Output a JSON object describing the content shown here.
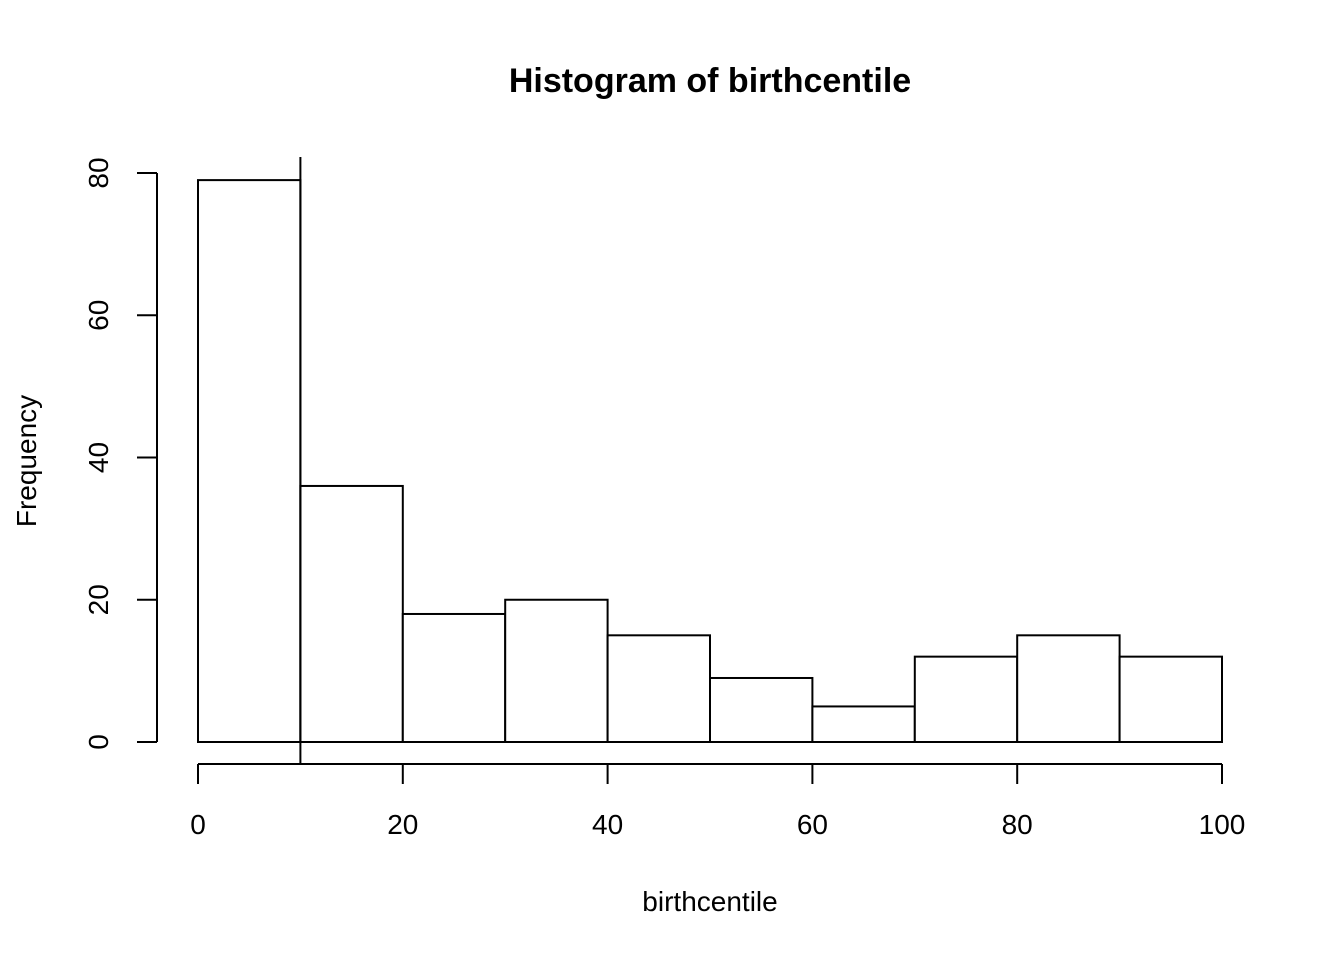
{
  "chart_data": {
    "type": "bar",
    "title": "Histogram of birthcentile",
    "xlabel": "birthcentile",
    "ylabel": "Frequency",
    "bins": [
      {
        "from": 0,
        "to": 10,
        "count": 79
      },
      {
        "from": 10,
        "to": 20,
        "count": 36
      },
      {
        "from": 20,
        "to": 30,
        "count": 18
      },
      {
        "from": 30,
        "to": 40,
        "count": 20
      },
      {
        "from": 40,
        "to": 50,
        "count": 15
      },
      {
        "from": 50,
        "to": 60,
        "count": 9
      },
      {
        "from": 60,
        "to": 70,
        "count": 5
      },
      {
        "from": 70,
        "to": 80,
        "count": 12
      },
      {
        "from": 80,
        "to": 90,
        "count": 15
      },
      {
        "from": 90,
        "to": 100,
        "count": 12
      }
    ],
    "xlim": [
      0,
      100
    ],
    "ylim": [
      0,
      80
    ],
    "x_ticks": [
      0,
      20,
      40,
      60,
      80,
      100
    ],
    "x_tick_labels": [
      "0",
      "20",
      "40",
      "60",
      "80",
      "100"
    ],
    "y_ticks": [
      0,
      20,
      40,
      60,
      80
    ],
    "y_tick_labels": [
      "0",
      "20",
      "40",
      "60",
      "80"
    ],
    "reference_line_x": 10,
    "grid": false,
    "legend": "none",
    "colors": {
      "bar_fill": "#ffffff",
      "bar_stroke": "#000000",
      "background": "#ffffff"
    }
  }
}
